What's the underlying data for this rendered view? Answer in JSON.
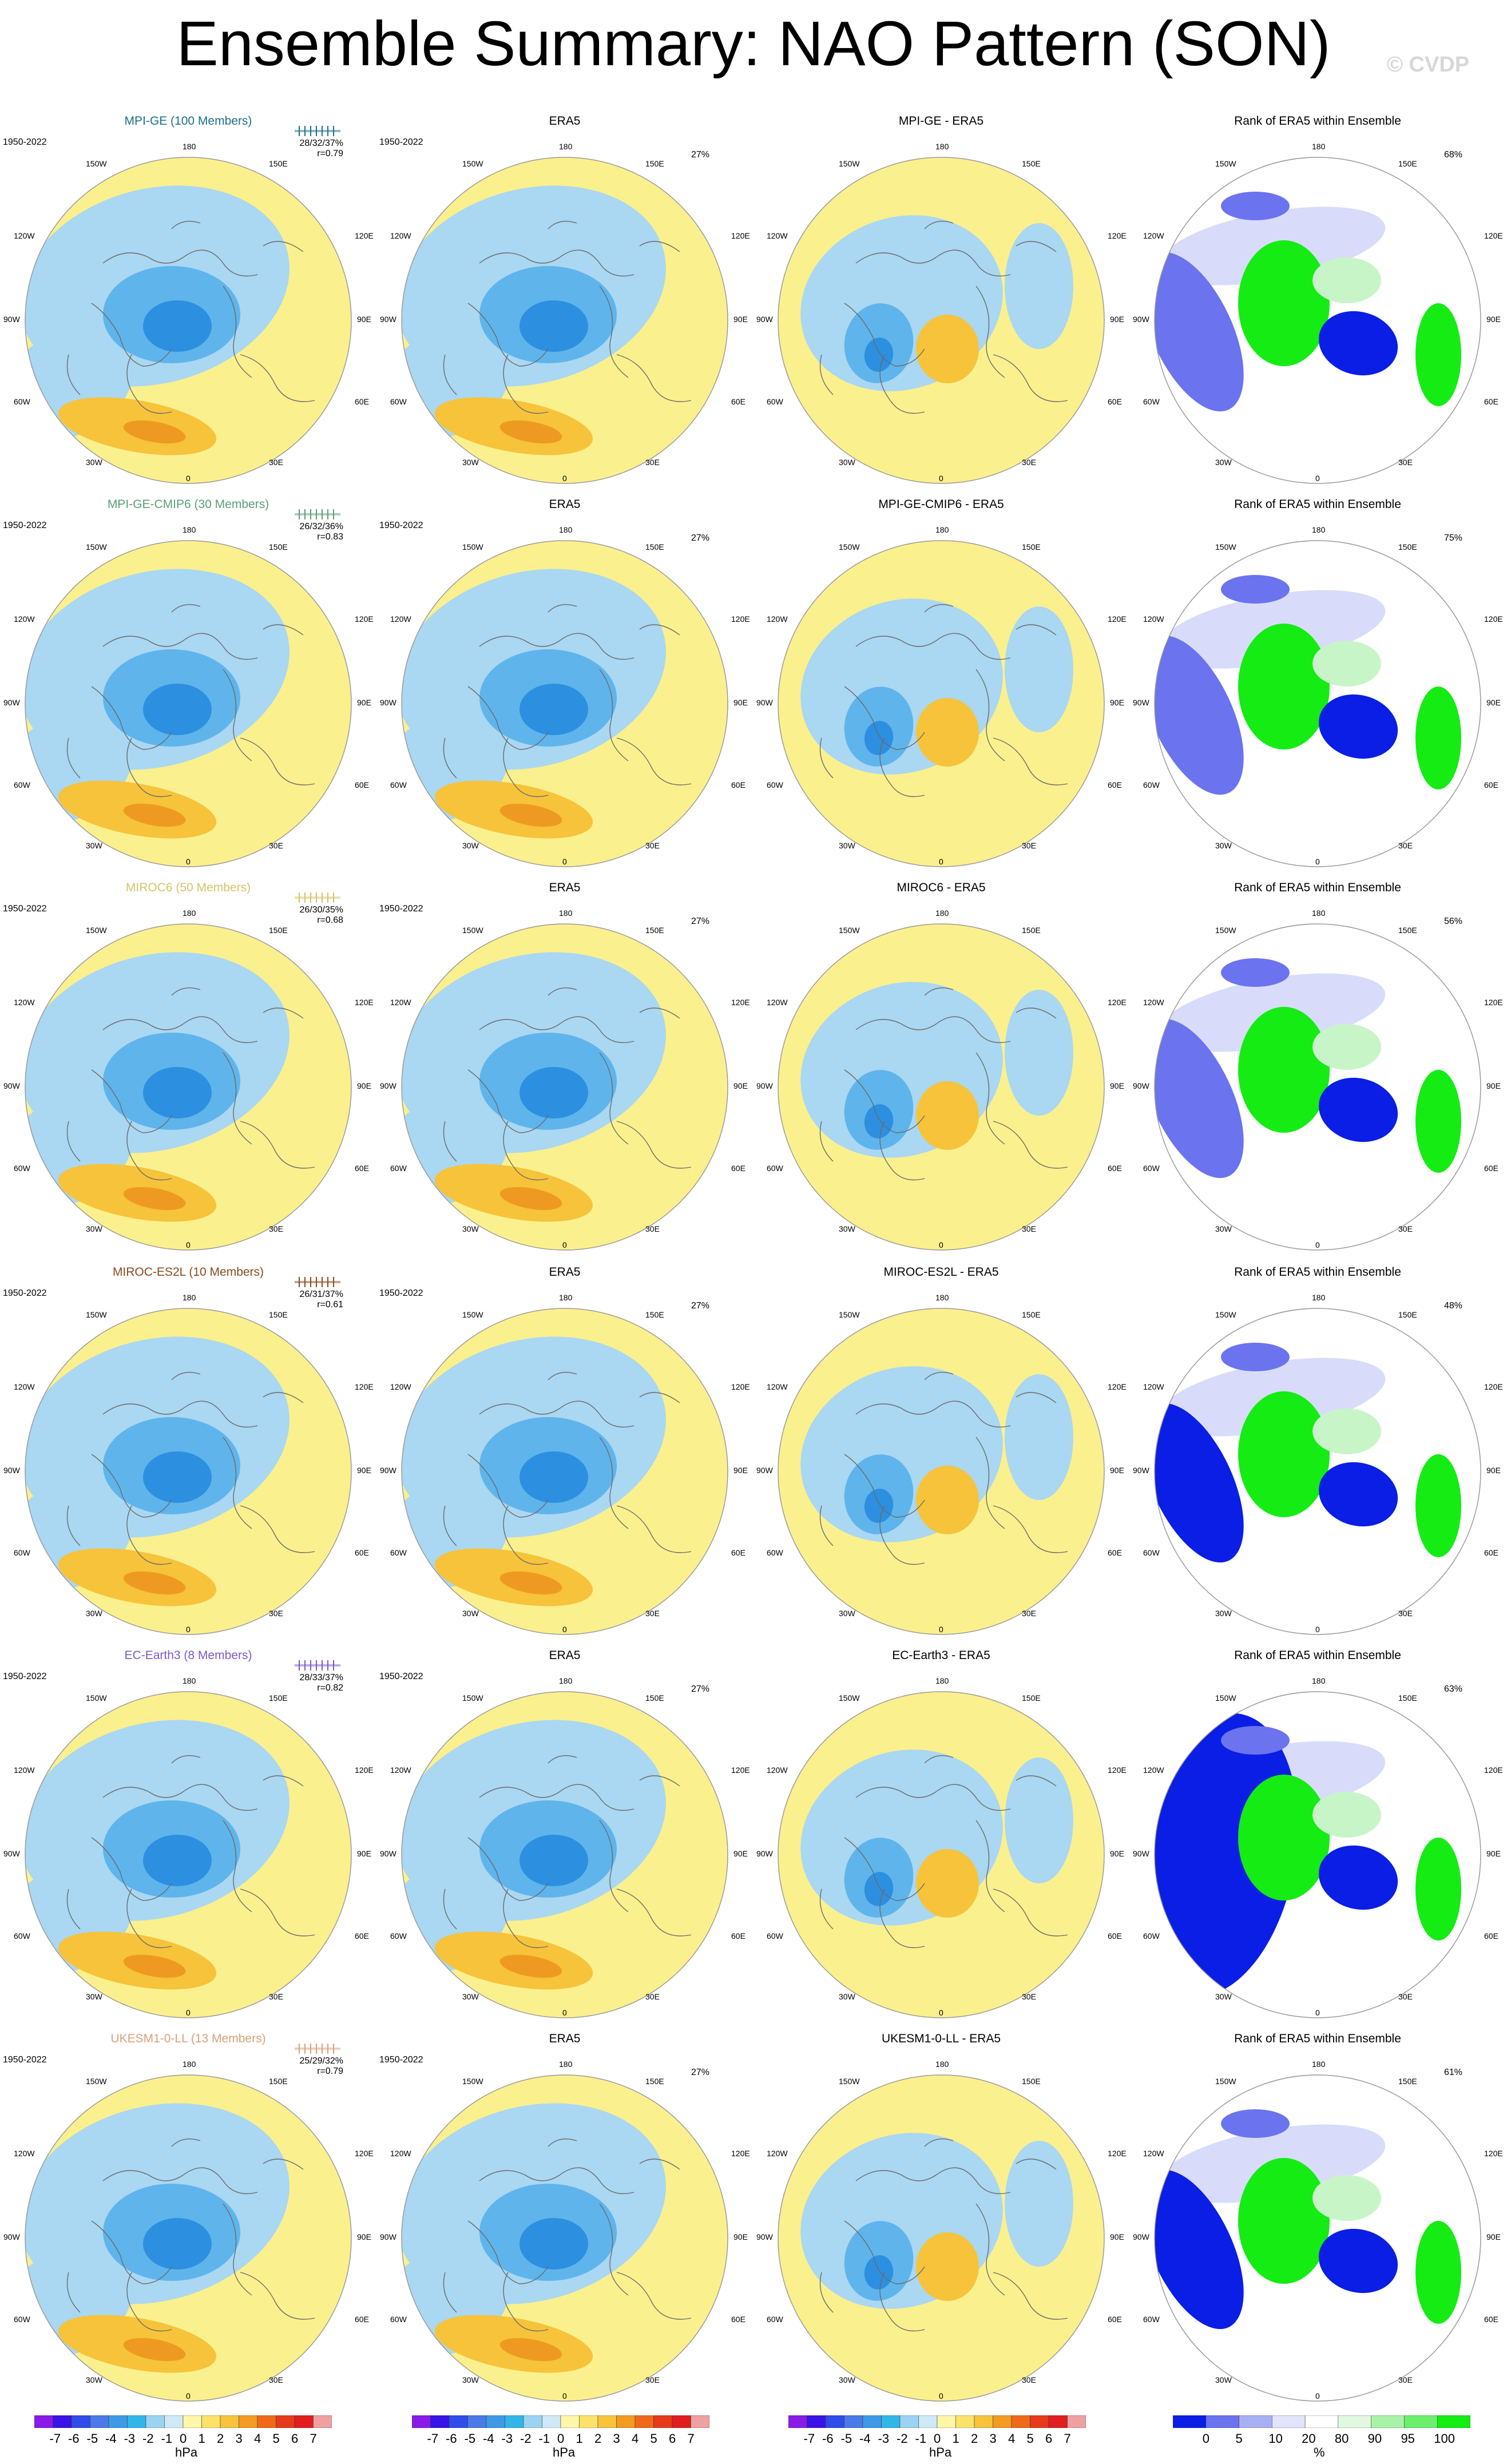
{
  "title": "Ensemble Summary: NAO Pattern (SON)",
  "copyright": "© CVDP",
  "period": "1950-2022",
  "lon_labels": {
    "n": "180",
    "nw": "150W",
    "ne": "150E",
    "wnw": "120W",
    "ene": "120E",
    "w": "90W",
    "e": "90E",
    "wsw": "60W",
    "ese": "60E",
    "sw": "30W",
    "se": "30E",
    "s": "0"
  },
  "colors": {
    "yellow": "#fbf08e",
    "lightblue": "#aad7f2",
    "midblue": "#5fb4ec",
    "deepblue": "#2d8fe0",
    "orange": "#f6c33a",
    "deeporange": "#ee9a22",
    "rankblue": "#0a1ee6",
    "rankmid": "#6b73ef",
    "ranklight": "#d8dcfa",
    "rankgreen": "#14ec14",
    "ranklightgreen": "#c8f5c8"
  },
  "models": [
    {
      "name": "MPI-GE (100 Members)",
      "color": "#1f6e8c",
      "stats": "28/32/37%",
      "r": "r=0.79",
      "diff_title": "MPI-GE - ERA5",
      "rank_pct": "68%"
    },
    {
      "name": "MPI-GE-CMIP6 (30 Members)",
      "color": "#5a9e7a",
      "stats": "26/32/36%",
      "r": "r=0.83",
      "diff_title": "MPI-GE-CMIP6 - ERA5",
      "rank_pct": "75%"
    },
    {
      "name": "MIROC6 (50 Members)",
      "color": "#d4c46a",
      "stats": "26/30/35%",
      "r": "r=0.68",
      "diff_title": "MIROC6 - ERA5",
      "rank_pct": "56%"
    },
    {
      "name": "MIROC-ES2L (10 Members)",
      "color": "#8c4a1e",
      "stats": "26/31/37%",
      "r": "r=0.61",
      "diff_title": "MIROC-ES2L - ERA5",
      "rank_pct": "48%"
    },
    {
      "name": "EC-Earth3 (8 Members)",
      "color": "#7a5acb",
      "stats": "28/33/37%",
      "r": "r=0.82",
      "diff_title": "EC-Earth3 - ERA5",
      "rank_pct": "63%"
    },
    {
      "name": "UKESM1-0-LL (13 Members)",
      "color": "#d9a07a",
      "stats": "25/29/32%",
      "r": "r=0.79",
      "diff_title": "UKESM1-0-LL - ERA5",
      "rank_pct": "61%"
    }
  ],
  "era5": {
    "title": "ERA5",
    "pct": "27%"
  },
  "rank_title": "Rank of ERA5 within Ensemble",
  "colorbar": {
    "hpa_labels": [
      "-7",
      "-6",
      "-5",
      "-4",
      "-3",
      "-2",
      "-1",
      "0",
      "1",
      "2",
      "3",
      "4",
      "5",
      "6",
      "7"
    ],
    "hpa_colors": [
      "#8a1ae6",
      "#3a14e6",
      "#2f4de8",
      "#4a7ae8",
      "#3e9ae6",
      "#32b6ea",
      "#9ad4f2",
      "#cfe9f7",
      "#fff6a8",
      "#fbe26a",
      "#f6c33a",
      "#f39a22",
      "#ee6a1a",
      "#e63a1a",
      "#e01e1e",
      "#f0a0a0"
    ],
    "hpa_unit": "hPa",
    "rank_labels": [
      "0",
      "5",
      "10",
      "20",
      "80",
      "90",
      "95",
      "100"
    ],
    "rank_colors": [
      "#0a1ee6",
      "#6b73ef",
      "#a9aff5",
      "#e1e4fb",
      "#ffffff",
      "#e1f9e1",
      "#a8f3a8",
      "#6cef6c",
      "#14ec14"
    ],
    "rank_unit": "%"
  }
}
